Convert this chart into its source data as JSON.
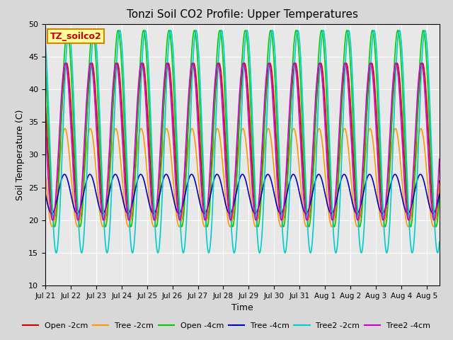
{
  "title": "Tonzi Soil CO2 Profile: Upper Temperatures",
  "xlabel": "Time",
  "ylabel": "Soil Temperature (C)",
  "ylim": [
    10,
    50
  ],
  "duration_days": 15.5,
  "fig_bg_color": "#d8d8d8",
  "plot_bg_color": "#e8e8e8",
  "label_box_text": "TZ_soilco2",
  "label_box_facecolor": "#ffff99",
  "label_box_edgecolor": "#cc8800",
  "label_text_color": "#cc0000",
  "series": [
    {
      "name": "Open -2cm",
      "color": "#cc0000"
    },
    {
      "name": "Tree -2cm",
      "color": "#ff9900"
    },
    {
      "name": "Open -4cm",
      "color": "#00cc00"
    },
    {
      "name": "Tree -4cm",
      "color": "#0000cc"
    },
    {
      "name": "Tree2 -2cm",
      "color": "#00cccc"
    },
    {
      "name": "Tree2 -4cm",
      "color": "#cc00cc"
    }
  ],
  "tick_labels": [
    "Jul 21",
    "Jul 22",
    "Jul 23",
    "Jul 24",
    "Jul 25",
    "Jul 26",
    "Jul 27",
    "Jul 28",
    "Jul 29",
    "Jul 30",
    "Jul 31",
    "Aug 1",
    "Aug 2",
    "Aug 3",
    "Aug 4",
    "Aug 5"
  ],
  "yticks": [
    10,
    15,
    20,
    25,
    30,
    35,
    40,
    45,
    50
  ],
  "grid_color": "#ffffff",
  "lw": 1.2,
  "open2cm": {
    "min": 20,
    "max": 44,
    "phase": 0.0
  },
  "tree2cm": {
    "min": 19,
    "max": 34,
    "phase": 0.4
  },
  "open4cm": {
    "min": 19,
    "max": 49,
    "phase": -0.2
  },
  "tree4cm": {
    "min": 21,
    "max": 27,
    "phase": 0.5
  },
  "tree22cm": {
    "min": 15,
    "max": 49,
    "phase": -0.6
  },
  "tree24cm": {
    "min": 20,
    "max": 44,
    "phase": 0.3
  }
}
